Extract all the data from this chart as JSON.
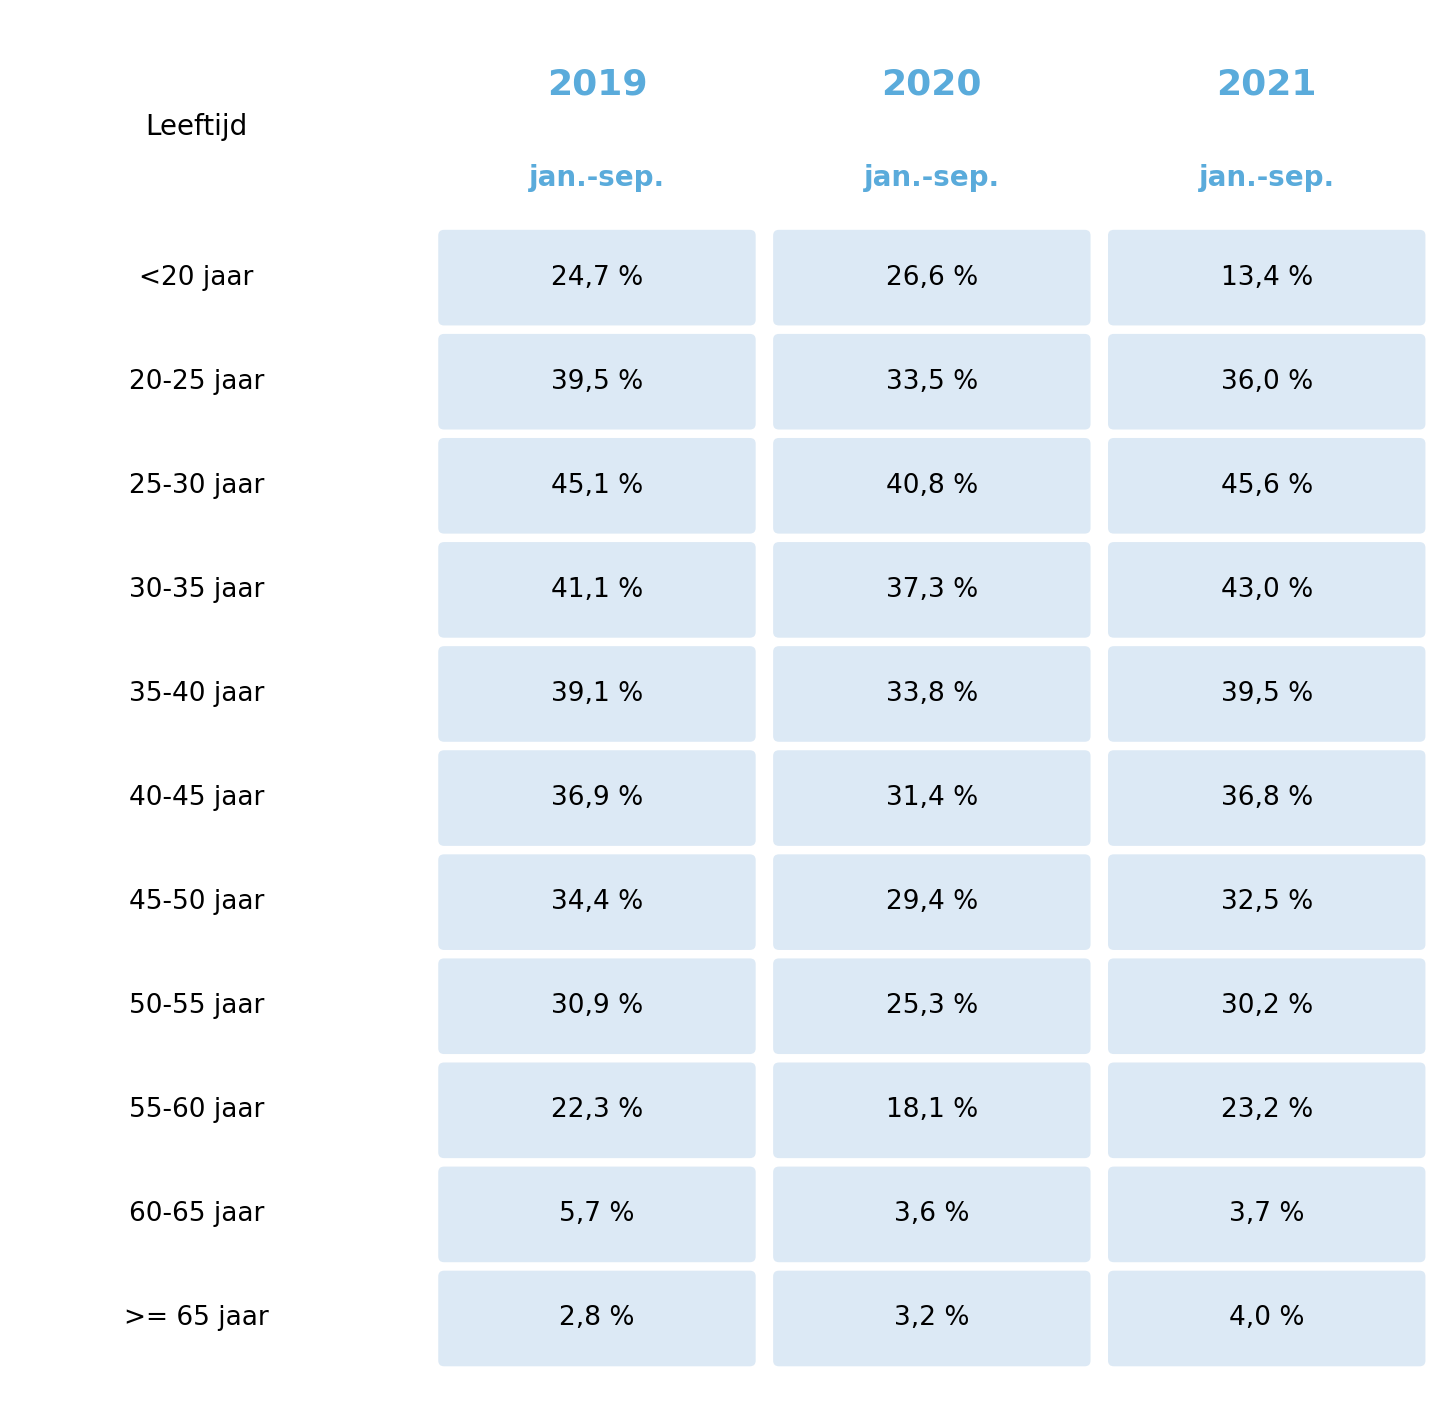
{
  "years": [
    "2019",
    "2020",
    "2021"
  ],
  "subheaders": [
    "jan.-sep.",
    "jan.-sep.",
    "jan.-sep."
  ],
  "row_label_header": "Leeftijd",
  "row_labels": [
    "<20 jaar",
    "20-25 jaar",
    "25-30 jaar",
    "30-35 jaar",
    "35-40 jaar",
    "40-45 jaar",
    "45-50 jaar",
    "50-55 jaar",
    "55-60 jaar",
    "60-65 jaar",
    ">= 65 jaar"
  ],
  "values": [
    [
      "24,7 %",
      "26,6 %",
      "13,4 %"
    ],
    [
      "39,5 %",
      "33,5 %",
      "36,0 %"
    ],
    [
      "45,1 %",
      "40,8 %",
      "45,6 %"
    ],
    [
      "41,1 %",
      "37,3 %",
      "43,0 %"
    ],
    [
      "39,1 %",
      "33,8 %",
      "39,5 %"
    ],
    [
      "36,9 %",
      "31,4 %",
      "36,8 %"
    ],
    [
      "34,4 %",
      "29,4 %",
      "32,5 %"
    ],
    [
      "30,9 %",
      "25,3 %",
      "30,2 %"
    ],
    [
      "22,3 %",
      "18,1 %",
      "23,2 %"
    ],
    [
      "5,7 %",
      "3,6 %",
      "3,7 %"
    ],
    [
      "2,8 %",
      "3,2 %",
      "4,0 %"
    ]
  ],
  "cell_bg_color": "#dce9f5",
  "header_year_color": "#5aabdb",
  "header_sub_color": "#5aabdb",
  "row_label_color": "#000000",
  "cell_text_color": "#000000",
  "background_color": "#ffffff",
  "year_fontsize": 26,
  "subheader_fontsize": 20,
  "row_label_header_fontsize": 20,
  "row_label_fontsize": 19,
  "cell_fontsize": 19,
  "fig_width": 14.56,
  "fig_height": 14.1,
  "dpi": 100
}
